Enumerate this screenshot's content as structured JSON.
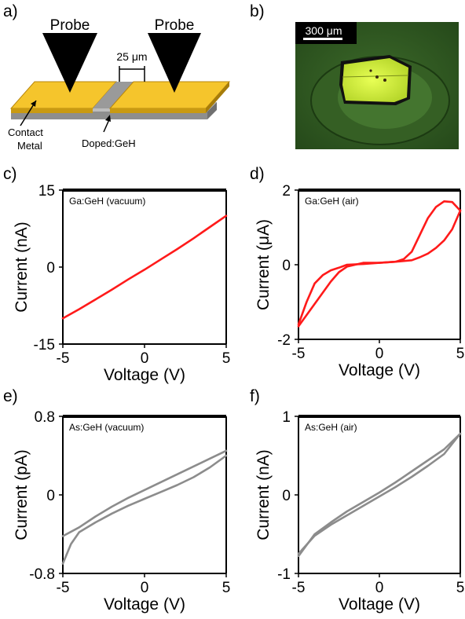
{
  "panels": {
    "a": "a)",
    "b": "b)",
    "c": "c)",
    "d": "d)",
    "e": "e)",
    "f": "f)"
  },
  "schematic": {
    "probe_left": "Probe",
    "probe_right": "Probe",
    "gap": "25 μm",
    "contact_line1": "Contact",
    "contact_line2": "Metal",
    "doped": "Doped:GeH",
    "colors": {
      "metal": "#f5c52c",
      "metal_side": "#c99a12",
      "base": "#a6a6a6",
      "base_side": "#7f7f7f",
      "probe": "#000000"
    }
  },
  "micrograph": {
    "scale_bar": "300 μm",
    "colors": {
      "background": "#2f5a21",
      "droplet": "#3e6b2c",
      "crystal": "#d9f53a",
      "frame": "#1a1a1a"
    }
  },
  "chart_data": [
    {
      "type": "line",
      "panel": "c",
      "annotation": "Ga:GeH (vacuum)",
      "xlabel": "Voltage (V)",
      "ylabel": "Current (nA)",
      "xlim": [
        -5,
        5
      ],
      "ylim": [
        -15,
        15
      ],
      "xticks": [
        "-5",
        "0",
        "5"
      ],
      "yticks": [
        "-15",
        "0",
        "15"
      ],
      "color": "#ff1a1a",
      "series": [
        {
          "x": [
            -5,
            -4,
            -3,
            -2,
            -1,
            0,
            1,
            2,
            3,
            4,
            5
          ],
          "y": [
            -10,
            -8.2,
            -6.3,
            -4.4,
            -2.4,
            -0.5,
            1.5,
            3.5,
            5.6,
            7.8,
            10
          ]
        }
      ]
    },
    {
      "type": "line",
      "panel": "d",
      "annotation": "Ga:GeH (air)",
      "xlabel": "Voltage (V)",
      "ylabel": "Current (μA)",
      "xlim": [
        -5,
        5
      ],
      "ylim": [
        -2,
        2
      ],
      "xticks": [
        "-5",
        "0",
        "5"
      ],
      "yticks": [
        "-2",
        "0",
        "2"
      ],
      "color": "#ff1a1a",
      "series": [
        {
          "x": [
            -5,
            -4.5,
            -4,
            -3.5,
            -3,
            -2.5,
            -2,
            -1,
            0,
            1,
            1.5,
            2,
            2.5,
            3,
            3.5,
            4,
            4.5,
            5
          ],
          "y": [
            -1.6,
            -1.0,
            -0.5,
            -0.28,
            -0.15,
            -0.08,
            0.0,
            0.02,
            0.05,
            0.08,
            0.15,
            0.35,
            0.8,
            1.25,
            1.55,
            1.7,
            1.68,
            1.45
          ]
        },
        {
          "x": [
            5,
            4.5,
            4,
            3.5,
            3,
            2.5,
            2,
            1,
            0,
            -1,
            -2,
            -2.5,
            -3,
            -3.5,
            -4,
            -4.5,
            -5
          ],
          "y": [
            1.45,
            0.95,
            0.65,
            0.45,
            0.3,
            0.2,
            0.12,
            0.08,
            0.05,
            0.05,
            -0.05,
            -0.2,
            -0.45,
            -0.75,
            -1.05,
            -1.35,
            -1.65
          ]
        }
      ]
    },
    {
      "type": "line",
      "panel": "e",
      "annotation": "As:GeH (vacuum)",
      "xlabel": "Voltage (V)",
      "ylabel": "Current (pA)",
      "xlim": [
        -5,
        5
      ],
      "ylim": [
        -0.8,
        0.8
      ],
      "xticks": [
        "-5",
        "0",
        "5"
      ],
      "yticks": [
        "-0.8",
        "0",
        "0.8"
      ],
      "color": "#8c8c8c",
      "series": [
        {
          "x": [
            -5,
            -4,
            -3,
            -2,
            -1,
            0,
            1,
            2,
            3,
            4,
            5
          ],
          "y": [
            -0.42,
            -0.33,
            -0.22,
            -0.12,
            -0.03,
            0.05,
            0.13,
            0.21,
            0.29,
            0.37,
            0.45
          ]
        },
        {
          "x": [
            5,
            4,
            3,
            2,
            1,
            0,
            -1,
            -2,
            -3,
            -4,
            -4.5,
            -5
          ],
          "y": [
            0.4,
            0.28,
            0.18,
            0.1,
            0.03,
            -0.04,
            -0.11,
            -0.19,
            -0.28,
            -0.38,
            -0.5,
            -0.7
          ]
        }
      ]
    },
    {
      "type": "line",
      "panel": "f",
      "annotation": "As:GeH (air)",
      "xlabel": "Voltage (V)",
      "ylabel": "Current (nA)",
      "xlim": [
        -5,
        5
      ],
      "ylim": [
        -1,
        1
      ],
      "xticks": [
        "-5",
        "0",
        "5"
      ],
      "yticks": [
        "-1",
        "0",
        "1"
      ],
      "color": "#8c8c8c",
      "series": [
        {
          "x": [
            -5,
            -4,
            -3,
            -2,
            -1,
            0,
            1,
            2,
            3,
            4,
            5
          ],
          "y": [
            -0.75,
            -0.52,
            -0.38,
            -0.26,
            -0.14,
            -0.02,
            0.1,
            0.23,
            0.37,
            0.52,
            0.78
          ]
        },
        {
          "x": [
            5,
            4,
            3,
            2,
            1,
            0,
            -1,
            -2,
            -3,
            -4,
            -5
          ],
          "y": [
            0.78,
            0.58,
            0.44,
            0.3,
            0.16,
            0.03,
            -0.09,
            -0.21,
            -0.35,
            -0.5,
            -0.78
          ]
        }
      ]
    }
  ]
}
